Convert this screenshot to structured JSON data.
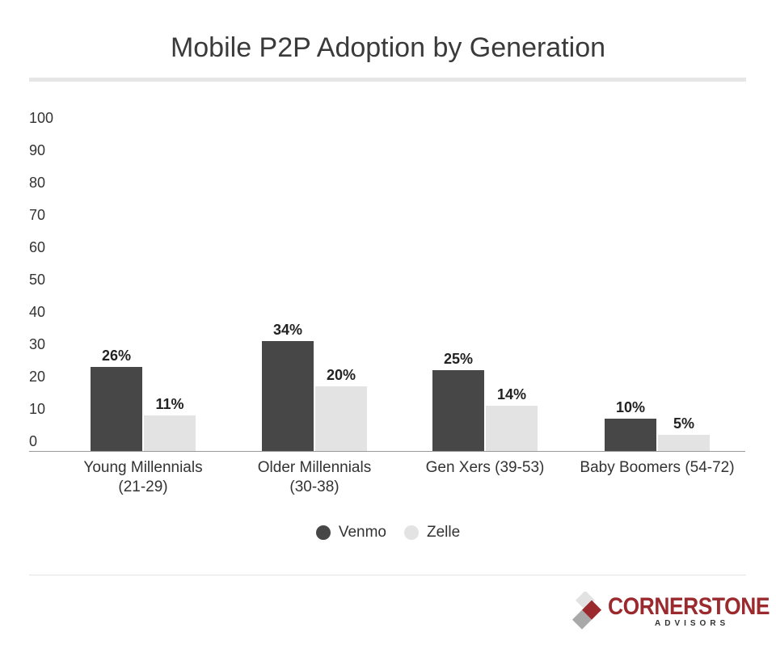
{
  "chart_data": {
    "type": "bar",
    "title": "Mobile P2P Adoption by Generation",
    "categories": [
      [
        "Young Millennials",
        "(21-29)"
      ],
      [
        "Older Millennials",
        "(30-38)"
      ],
      [
        "Gen Xers (39-53)"
      ],
      [
        "Baby Boomers (54-72)"
      ]
    ],
    "series": [
      {
        "name": "Venmo",
        "color": "#474747",
        "values": [
          26,
          34,
          25,
          10
        ],
        "labels": [
          "26%",
          "34%",
          "25%",
          "10%"
        ]
      },
      {
        "name": "Zelle",
        "color": "#e3e3e3",
        "values": [
          11,
          20,
          14,
          5
        ],
        "labels": [
          "11%",
          "20%",
          "14%",
          "5%"
        ]
      }
    ],
    "ylim": [
      0,
      100
    ],
    "yticks": [
      "0",
      "10",
      "20",
      "30",
      "40",
      "50",
      "60",
      "70",
      "80",
      "90",
      "100"
    ],
    "grid": false,
    "legend": "bottom"
  },
  "logo": {
    "brand": "CORNERSTONE",
    "sub": "ADVISORS",
    "colors": {
      "red": "#9b2a2f",
      "grey": "#a9a9a9",
      "light": "#e2e2e2"
    }
  }
}
